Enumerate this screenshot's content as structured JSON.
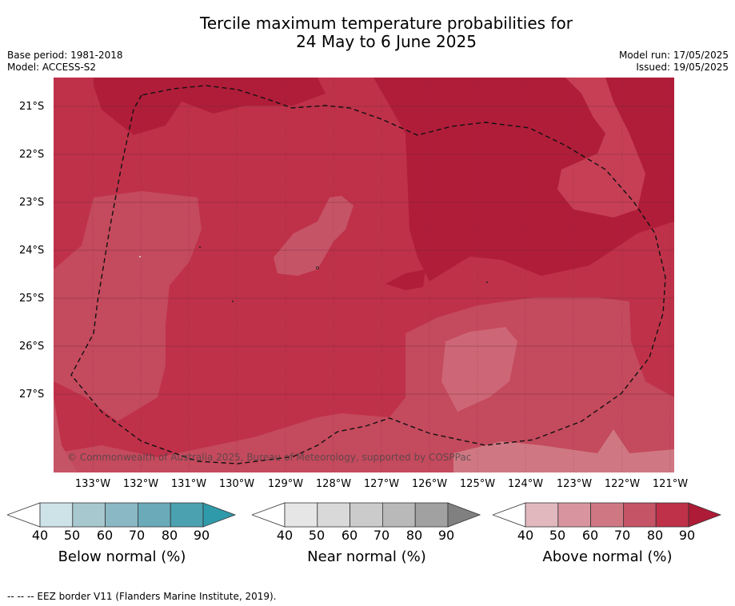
{
  "title_line1": "Tercile maximum temperature probabilities for",
  "title_line2": "24 May to 6 June 2025",
  "meta_left": {
    "base_period": "Base period: 1981-2018",
    "model": "Model: ACCESS-S2"
  },
  "meta_right": {
    "model_run": "Model run: 17/05/2025",
    "issued": "Issued: 19/05/2025"
  },
  "lat_labels": [
    "21°S",
    "22°S",
    "23°S",
    "24°S",
    "25°S",
    "26°S",
    "27°S"
  ],
  "lon_labels": [
    "133°W",
    "132°W",
    "131°W",
    "130°W",
    "129°W",
    "128°W",
    "127°W",
    "126°W",
    "125°W",
    "124°W",
    "123°W",
    "122°W",
    "121°W"
  ],
  "copyright": "© Commonwealth of Australia 2025, Bureau of Meteorology, supported by COSPPac",
  "colorbars": [
    {
      "label": "Below normal (%)",
      "colors": [
        "#cde3e8",
        "#a8c8cf",
        "#8ab8c4",
        "#6aaab9",
        "#4ba1b0",
        "#2f9aa9"
      ],
      "ticks": [
        "40",
        "50",
        "60",
        "70",
        "80",
        "90"
      ]
    },
    {
      "label": "Near normal (%)",
      "colors": [
        "#e6e6e6",
        "#d9d9d9",
        "#cbcbcb",
        "#b9b9b9",
        "#a1a1a1",
        "#808080"
      ],
      "ticks": [
        "40",
        "50",
        "60",
        "70",
        "80",
        "90"
      ]
    },
    {
      "label": "Above normal (%)",
      "colors": [
        "#e2b8bf",
        "#d8959f",
        "#cf7883",
        "#c65467",
        "#bf3149",
        "#ad1b36"
      ],
      "ticks": [
        "40",
        "50",
        "60",
        "70",
        "80",
        "90"
      ]
    }
  ],
  "footer": "--  --  -- EEZ border V11 (Flanders Marine Institute, 2019)."
}
